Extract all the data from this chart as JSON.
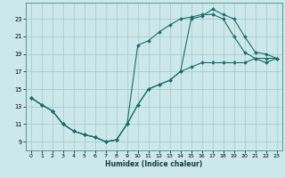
{
  "xlabel": "Humidex (Indice chaleur)",
  "bg_color": "#cce8ea",
  "grid_color": "#aaccce",
  "line_color": "#1a6e6a",
  "xlim": [
    -0.5,
    23.5
  ],
  "ylim": [
    8.0,
    24.8
  ],
  "xticks": [
    0,
    1,
    2,
    3,
    4,
    5,
    6,
    7,
    8,
    9,
    10,
    11,
    12,
    13,
    14,
    15,
    16,
    17,
    18,
    19,
    20,
    21,
    22,
    23
  ],
  "yticks": [
    9,
    11,
    13,
    15,
    17,
    19,
    21,
    23
  ],
  "line1_x": [
    0,
    1,
    2,
    3,
    4,
    5,
    6,
    7,
    8,
    9,
    10,
    11,
    12,
    13,
    14,
    15,
    16,
    17,
    18,
    19,
    20,
    21,
    22,
    23
  ],
  "line1_y": [
    14.0,
    13.2,
    12.5,
    11.0,
    10.2,
    9.8,
    9.5,
    9.0,
    9.2,
    11.0,
    13.2,
    15.0,
    15.5,
    16.0,
    17.0,
    17.5,
    18.0,
    18.0,
    18.0,
    18.0,
    18.0,
    18.5,
    18.5,
    18.5
  ],
  "line2_x": [
    0,
    1,
    2,
    3,
    4,
    5,
    6,
    7,
    8,
    9,
    10,
    11,
    12,
    13,
    14,
    15,
    16,
    17,
    18,
    19,
    20,
    21,
    22,
    23
  ],
  "line2_y": [
    14.0,
    13.2,
    12.5,
    11.0,
    10.2,
    9.8,
    9.5,
    9.0,
    9.2,
    11.0,
    13.2,
    15.0,
    15.5,
    16.0,
    17.0,
    23.0,
    23.3,
    24.1,
    23.5,
    23.0,
    21.0,
    19.2,
    19.0,
    18.5
  ],
  "line3_x": [
    0,
    1,
    2,
    3,
    4,
    5,
    6,
    7,
    8,
    9,
    10,
    11,
    12,
    13,
    14,
    15,
    16,
    17,
    18,
    19,
    20,
    21,
    22,
    23
  ],
  "line3_y": [
    14.0,
    13.2,
    12.5,
    11.0,
    10.2,
    9.8,
    9.5,
    9.0,
    9.2,
    11.0,
    20.0,
    20.5,
    21.5,
    22.3,
    23.0,
    23.2,
    23.5,
    23.5,
    23.0,
    21.0,
    19.2,
    18.5,
    18.0,
    18.5
  ]
}
